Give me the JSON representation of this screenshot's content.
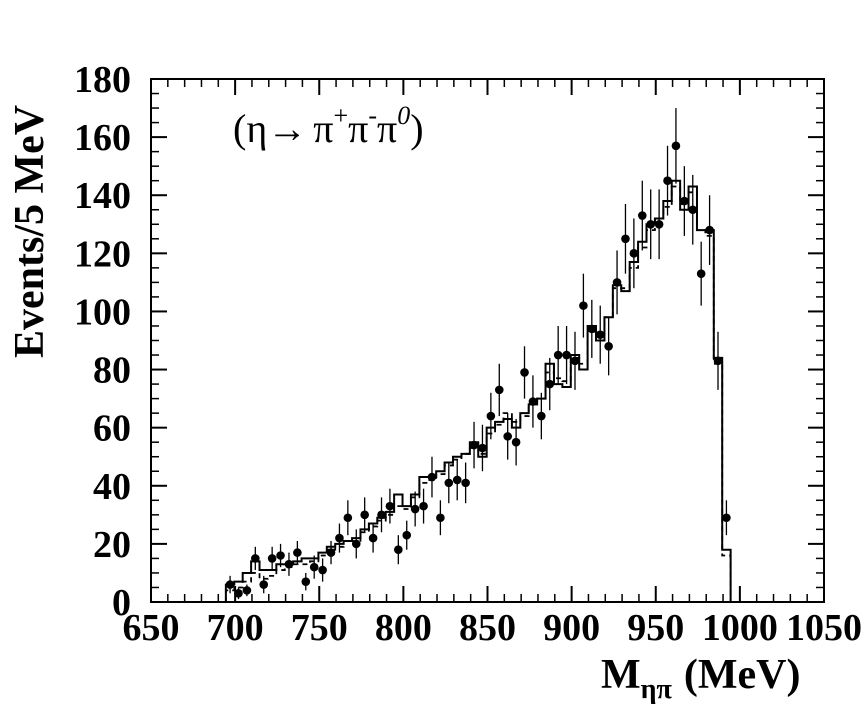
{
  "chart_data": {
    "type": "line",
    "title": "",
    "annotation": {
      "open": "(",
      "eta": "η",
      "arrow": "→",
      "pi1": "π",
      "plus": "+",
      "pi2": "π",
      "minus": "-",
      "pi3": "π",
      "zero": "0",
      "close": ")"
    },
    "xlabel": {
      "m": "M",
      "sub": "ηπ",
      "unit": "(MeV)"
    },
    "ylabel": "Events/5 MeV",
    "xlim": [
      650,
      1050
    ],
    "ylim": [
      0,
      180
    ],
    "x_ticks": [
      650,
      700,
      750,
      800,
      850,
      900,
      950,
      1000,
      1050
    ],
    "y_ticks": [
      0,
      20,
      40,
      60,
      80,
      100,
      120,
      140,
      160,
      180
    ],
    "grid": false,
    "series": [
      {
        "style": "points-with-errors",
        "x": [
          697,
          702,
          707,
          712,
          717,
          722,
          727,
          732,
          737,
          742,
          747,
          752,
          757,
          762,
          767,
          772,
          777,
          782,
          787,
          792,
          797,
          802,
          807,
          812,
          817,
          822,
          827,
          832,
          837,
          842,
          847,
          852,
          857,
          862,
          867,
          872,
          877,
          882,
          887,
          892,
          897,
          902,
          907,
          912,
          917,
          922,
          927,
          932,
          937,
          942,
          947,
          952,
          957,
          962,
          967,
          972,
          977,
          982,
          987,
          992
        ],
        "y": [
          6,
          3,
          4,
          15,
          6,
          15,
          16,
          13,
          17,
          7,
          12,
          11,
          17,
          22,
          29,
          20,
          30,
          22,
          30,
          33,
          18,
          23,
          32,
          33,
          43,
          29,
          41,
          42,
          41,
          54,
          53,
          64,
          73,
          57,
          55,
          79,
          69,
          64,
          75,
          85,
          85,
          83,
          102,
          94,
          92,
          88,
          110,
          125,
          120,
          133,
          130,
          130,
          145,
          157,
          138,
          135,
          113,
          128,
          83,
          29
        ],
        "err": [
          3,
          2,
          2,
          4,
          3,
          4,
          4,
          4,
          4,
          3,
          4,
          4,
          4,
          5,
          6,
          5,
          6,
          5,
          6,
          6,
          5,
          5,
          6,
          6,
          7,
          6,
          7,
          7,
          7,
          8,
          8,
          8,
          9,
          8,
          8,
          9,
          9,
          8,
          9,
          10,
          10,
          10,
          11,
          10,
          10,
          10,
          11,
          12,
          12,
          12,
          12,
          12,
          12,
          13,
          12,
          12,
          11,
          12,
          10,
          6
        ]
      },
      {
        "style": "solid-histogram",
        "x": [
          697,
          702,
          707,
          712,
          717,
          722,
          727,
          732,
          737,
          742,
          747,
          752,
          757,
          762,
          767,
          772,
          777,
          782,
          787,
          792,
          797,
          802,
          807,
          812,
          817,
          822,
          827,
          832,
          837,
          842,
          847,
          852,
          857,
          862,
          867,
          872,
          877,
          882,
          887,
          892,
          897,
          902,
          907,
          912,
          917,
          922,
          927,
          932,
          937,
          942,
          947,
          952,
          957,
          962,
          967,
          972,
          977,
          982,
          987,
          992
        ],
        "y": [
          6,
          7,
          10,
          14,
          11,
          11,
          13,
          13,
          14,
          15,
          15,
          17,
          19,
          20,
          21,
          22,
          25,
          27,
          29,
          31,
          37,
          33,
          37,
          43,
          43,
          45,
          48,
          50,
          51,
          55,
          50,
          60,
          62,
          63,
          60,
          65,
          68,
          70,
          82,
          75,
          74,
          85,
          80,
          95,
          90,
          98,
          109,
          107,
          117,
          124,
          130,
          132,
          138,
          145,
          135,
          143,
          128,
          128,
          84,
          18
        ]
      },
      {
        "style": "dashed-histogram",
        "x": [
          697,
          702,
          707,
          712,
          717,
          722,
          727,
          732,
          737,
          742,
          747,
          752,
          757,
          762,
          767,
          772,
          777,
          782,
          787,
          792,
          797,
          802,
          807,
          812,
          817,
          822,
          827,
          832,
          837,
          842,
          847,
          852,
          857,
          862,
          867,
          872,
          877,
          882,
          887,
          892,
          897,
          902,
          907,
          912,
          917,
          922,
          927,
          932,
          937,
          942,
          947,
          952,
          957,
          962,
          967,
          972,
          977,
          982,
          987,
          992
        ],
        "y": [
          4,
          5,
          7,
          10,
          8,
          9,
          11,
          12,
          13,
          13,
          14,
          16,
          18,
          19,
          21,
          21,
          24,
          26,
          28,
          30,
          33,
          32,
          36,
          41,
          42,
          44,
          47,
          49,
          51,
          53,
          51,
          58,
          61,
          65,
          62,
          64,
          68,
          70,
          79,
          77,
          76,
          84,
          82,
          93,
          90,
          98,
          108,
          108,
          115,
          122,
          128,
          132,
          136,
          143,
          137,
          141,
          128,
          126,
          82,
          16
        ]
      }
    ],
    "colors": {
      "axis": "#000000",
      "data": "#000000",
      "background": "#ffffff"
    }
  }
}
